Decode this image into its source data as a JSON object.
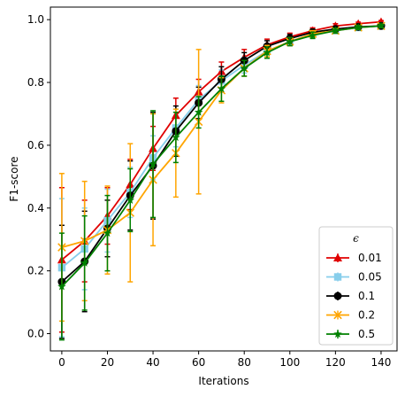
{
  "chart_data": {
    "type": "line",
    "xlabel": "Iterations",
    "ylabel": "F1-score",
    "xlim": [
      -5,
      147
    ],
    "ylim": [
      -0.055,
      1.04
    ],
    "xticks": [
      0,
      20,
      40,
      60,
      80,
      100,
      120,
      140
    ],
    "yticks": [
      0.0,
      0.2,
      0.4,
      0.6,
      0.8,
      1.0
    ],
    "ytick_labels": [
      "0.0",
      "0.2",
      "0.4",
      "0.6",
      "0.8",
      "1.0"
    ],
    "grid": false,
    "legend": {
      "title": "ϵ",
      "placement": "lower-right"
    },
    "x": [
      0,
      10,
      20,
      30,
      40,
      50,
      60,
      70,
      80,
      90,
      100,
      110,
      120,
      130,
      140
    ],
    "series": [
      {
        "name": "0.01",
        "color": "#e00000",
        "marker": "triangle",
        "values": [
          0.235,
          0.295,
          0.375,
          0.475,
          0.59,
          0.695,
          0.77,
          0.835,
          0.88,
          0.92,
          0.945,
          0.965,
          0.98,
          0.987,
          0.993
        ],
        "errors": [
          0.23,
          0.13,
          0.09,
          0.08,
          0.07,
          0.055,
          0.04,
          0.03,
          0.025,
          0.018,
          0.012,
          0.009,
          0.007,
          0.005,
          0.004
        ]
      },
      {
        "name": "0.05",
        "color": "#87ceeb",
        "marker": "square",
        "values": [
          0.21,
          0.27,
          0.36,
          0.45,
          0.56,
          0.655,
          0.745,
          0.805,
          0.855,
          0.9,
          0.93,
          0.955,
          0.965,
          0.975,
          0.98
        ],
        "errors": [
          0.22,
          0.13,
          0.1,
          0.08,
          0.07,
          0.06,
          0.045,
          0.035,
          0.025,
          0.018,
          0.013,
          0.01,
          0.008,
          0.006,
          0.005
        ]
      },
      {
        "name": "0.1",
        "color": "#000000",
        "marker": "circle",
        "values": [
          0.165,
          0.23,
          0.335,
          0.44,
          0.535,
          0.645,
          0.735,
          0.81,
          0.87,
          0.915,
          0.94,
          0.96,
          0.97,
          0.977,
          0.98
        ],
        "errors": [
          0.18,
          0.16,
          0.09,
          0.11,
          0.17,
          0.08,
          0.05,
          0.04,
          0.025,
          0.018,
          0.013,
          0.01,
          0.008,
          0.006,
          0.005
        ]
      },
      {
        "name": "0.2",
        "color": "#ffa500",
        "marker": "x",
        "values": [
          0.275,
          0.295,
          0.33,
          0.385,
          0.49,
          0.575,
          0.675,
          0.775,
          0.845,
          0.9,
          0.93,
          0.955,
          0.965,
          0.975,
          0.98
        ],
        "errors": [
          0.235,
          0.19,
          0.14,
          0.22,
          0.21,
          0.14,
          0.23,
          0.04,
          0.025,
          0.018,
          0.013,
          0.01,
          0.008,
          0.006,
          0.005
        ]
      },
      {
        "name": "0.5",
        "color": "#008000",
        "marker": "star",
        "values": [
          0.15,
          0.225,
          0.32,
          0.425,
          0.54,
          0.625,
          0.705,
          0.78,
          0.845,
          0.895,
          0.93,
          0.95,
          0.965,
          0.975,
          0.98
        ],
        "errors": [
          0.17,
          0.15,
          0.12,
          0.1,
          0.17,
          0.08,
          0.05,
          0.04,
          0.025,
          0.018,
          0.013,
          0.01,
          0.008,
          0.006,
          0.005
        ]
      }
    ]
  }
}
